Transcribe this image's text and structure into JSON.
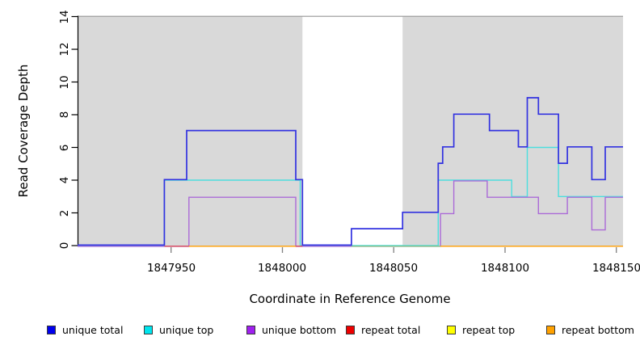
{
  "chart_data": {
    "type": "line",
    "subtype": "step",
    "title": "",
    "xlabel": "Coordinate in Reference Genome",
    "ylabel": "Read Coverage Depth",
    "xlim": [
      1847908,
      1848153
    ],
    "ylim": [
      0,
      14
    ],
    "x_ticks": [
      1847950,
      1848000,
      1848050,
      1848100,
      1848150
    ],
    "y_ticks": [
      0,
      2,
      4,
      6,
      8,
      10,
      12,
      14
    ],
    "grid": false,
    "shade_color": "#d9d9d9",
    "shade_border_color": "#969696",
    "background_shaded_regions": [
      [
        1847908,
        1848009
      ],
      [
        1848054,
        1848153
      ]
    ],
    "series": [
      {
        "name": "unique total",
        "color": "#3232e0",
        "steps": [
          [
            1847908,
            0
          ],
          [
            1847947,
            4
          ],
          [
            1847957,
            7
          ],
          [
            1848006,
            4
          ],
          [
            1848009,
            0
          ],
          [
            1848031,
            1
          ],
          [
            1848054,
            2
          ],
          [
            1848070,
            5
          ],
          [
            1848072,
            6
          ],
          [
            1848077,
            8
          ],
          [
            1848093,
            7
          ],
          [
            1848106,
            6
          ],
          [
            1848110,
            9
          ],
          [
            1848115,
            8
          ],
          [
            1848124,
            5
          ],
          [
            1848128,
            6
          ],
          [
            1848139,
            4
          ],
          [
            1848145,
            6
          ],
          [
            1848153,
            6
          ]
        ]
      },
      {
        "name": "unique top",
        "color": "#4cdede",
        "steps": [
          [
            1847908,
            0
          ],
          [
            1847947,
            4
          ],
          [
            1848008,
            0
          ],
          [
            1848070,
            4
          ],
          [
            1848103,
            3
          ],
          [
            1848110,
            6
          ],
          [
            1848124,
            3
          ],
          [
            1848153,
            3
          ]
        ]
      },
      {
        "name": "unique bottom",
        "color": "#ab6ad8",
        "steps": [
          [
            1847908,
            0
          ],
          [
            1847958,
            3
          ],
          [
            1848006,
            0
          ],
          [
            1848071,
            2
          ],
          [
            1848077,
            4
          ],
          [
            1848092,
            3
          ],
          [
            1848115,
            2
          ],
          [
            1848128,
            3
          ],
          [
            1848139,
            1
          ],
          [
            1848145,
            3
          ],
          [
            1848153,
            3
          ]
        ]
      },
      {
        "name": "repeat total",
        "color": "#d84858",
        "steps": [
          [
            1847908,
            0
          ],
          [
            1848153,
            0
          ]
        ]
      },
      {
        "name": "repeat top",
        "color": "#e8e800",
        "steps": [
          [
            1847908,
            0
          ],
          [
            1848153,
            0
          ]
        ]
      },
      {
        "name": "repeat bottom",
        "color": "#ff9d00",
        "steps": [
          [
            1847908,
            0
          ],
          [
            1848153,
            0
          ]
        ]
      }
    ],
    "baseline_visible_segments": [
      {
        "series": "repeat total",
        "color": "#d84858",
        "from": 1847947,
        "to": 1847958
      },
      {
        "series": "repeat bottom",
        "color": "#ff9d00",
        "from": 1847958,
        "to": 1848006
      },
      {
        "series": "repeat total",
        "color": "#d84858",
        "from": 1848006,
        "to": 1848009
      },
      {
        "series": "repeat top over unique top",
        "color": "#84c884",
        "from": 1848031,
        "to": 1848071
      },
      {
        "series": "repeat bottom",
        "color": "#ff9d00",
        "from": 1848071,
        "to": 1848153
      }
    ]
  },
  "legend": [
    {
      "label": "unique total",
      "color": "#0000ee"
    },
    {
      "label": "unique top",
      "color": "#00e5ee"
    },
    {
      "label": "unique bottom",
      "color": "#a020f0"
    },
    {
      "label": "repeat total",
      "color": "#ee0000"
    },
    {
      "label": "repeat top",
      "color": "#ffff00"
    },
    {
      "label": "repeat bottom",
      "color": "#ffa100"
    }
  ]
}
